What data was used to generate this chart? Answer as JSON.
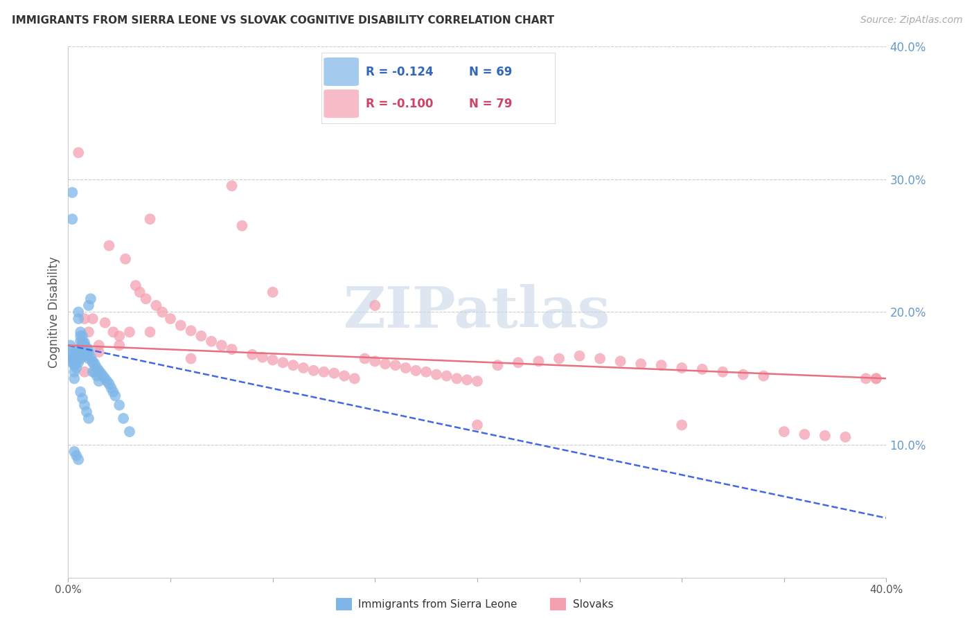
{
  "title": "IMMIGRANTS FROM SIERRA LEONE VS SLOVAK COGNITIVE DISABILITY CORRELATION CHART",
  "source": "Source: ZipAtlas.com",
  "ylabel": "Cognitive Disability",
  "xlim": [
    0.0,
    0.4
  ],
  "ylim": [
    0.0,
    0.4
  ],
  "ytick_positions_right": [
    0.1,
    0.2,
    0.3,
    0.4
  ],
  "ytick_labels_right": [
    "10.0%",
    "20.0%",
    "30.0%",
    "40.0%"
  ],
  "grid_color": "#cccccc",
  "background_color": "#ffffff",
  "watermark_text": "ZIPatlas",
  "watermark_color": "#c8d8e8",
  "series1_name": "Immigrants from Sierra Leone",
  "series1_color": "#7EB6E8",
  "series1_R": "-0.124",
  "series1_N": "69",
  "series1_trend_color": "#4169E1",
  "series1_trend_style": "--",
  "series2_name": "Slovaks",
  "series2_color": "#F4A0B0",
  "series2_R": "-0.100",
  "series2_N": "79",
  "series2_trend_color": "#E87080",
  "series2_trend_style": "-",
  "sierra_leone_x": [
    0.001,
    0.001,
    0.001,
    0.002,
    0.002,
    0.002,
    0.002,
    0.003,
    0.003,
    0.003,
    0.003,
    0.003,
    0.004,
    0.004,
    0.004,
    0.004,
    0.005,
    0.005,
    0.005,
    0.005,
    0.005,
    0.006,
    0.006,
    0.006,
    0.006,
    0.007,
    0.007,
    0.007,
    0.008,
    0.008,
    0.008,
    0.008,
    0.009,
    0.009,
    0.009,
    0.01,
    0.01,
    0.01,
    0.01,
    0.011,
    0.011,
    0.012,
    0.012,
    0.012,
    0.013,
    0.013,
    0.014,
    0.014,
    0.015,
    0.015,
    0.016,
    0.017,
    0.018,
    0.019,
    0.02,
    0.021,
    0.022,
    0.023,
    0.025,
    0.027,
    0.03,
    0.003,
    0.004,
    0.005,
    0.006,
    0.007,
    0.008,
    0.009,
    0.01
  ],
  "sierra_leone_y": [
    0.175,
    0.17,
    0.165,
    0.29,
    0.27,
    0.168,
    0.162,
    0.165,
    0.163,
    0.16,
    0.155,
    0.15,
    0.17,
    0.168,
    0.163,
    0.158,
    0.2,
    0.195,
    0.172,
    0.168,
    0.162,
    0.185,
    0.182,
    0.178,
    0.165,
    0.182,
    0.178,
    0.175,
    0.177,
    0.175,
    0.172,
    0.168,
    0.173,
    0.17,
    0.167,
    0.205,
    0.172,
    0.169,
    0.165,
    0.21,
    0.166,
    0.163,
    0.162,
    0.155,
    0.161,
    0.155,
    0.158,
    0.152,
    0.156,
    0.148,
    0.154,
    0.152,
    0.15,
    0.148,
    0.146,
    0.143,
    0.14,
    0.137,
    0.13,
    0.12,
    0.11,
    0.095,
    0.092,
    0.089,
    0.14,
    0.135,
    0.13,
    0.125,
    0.12
  ],
  "slovaks_x": [
    0.005,
    0.008,
    0.01,
    0.012,
    0.015,
    0.018,
    0.02,
    0.022,
    0.025,
    0.028,
    0.03,
    0.033,
    0.035,
    0.038,
    0.04,
    0.043,
    0.046,
    0.05,
    0.055,
    0.06,
    0.065,
    0.07,
    0.075,
    0.08,
    0.085,
    0.09,
    0.095,
    0.1,
    0.105,
    0.11,
    0.115,
    0.12,
    0.125,
    0.13,
    0.135,
    0.14,
    0.145,
    0.15,
    0.155,
    0.16,
    0.165,
    0.17,
    0.175,
    0.18,
    0.185,
    0.19,
    0.195,
    0.2,
    0.21,
    0.22,
    0.23,
    0.24,
    0.25,
    0.26,
    0.27,
    0.28,
    0.29,
    0.3,
    0.31,
    0.32,
    0.33,
    0.34,
    0.35,
    0.36,
    0.37,
    0.38,
    0.39,
    0.395,
    0.008,
    0.015,
    0.025,
    0.04,
    0.06,
    0.08,
    0.1,
    0.15,
    0.2,
    0.3,
    0.395
  ],
  "slovaks_y": [
    0.32,
    0.195,
    0.185,
    0.195,
    0.175,
    0.192,
    0.25,
    0.185,
    0.182,
    0.24,
    0.185,
    0.22,
    0.215,
    0.21,
    0.27,
    0.205,
    0.2,
    0.195,
    0.19,
    0.186,
    0.182,
    0.178,
    0.175,
    0.172,
    0.265,
    0.168,
    0.166,
    0.164,
    0.162,
    0.16,
    0.158,
    0.156,
    0.155,
    0.154,
    0.152,
    0.15,
    0.165,
    0.163,
    0.161,
    0.16,
    0.158,
    0.156,
    0.155,
    0.153,
    0.152,
    0.15,
    0.149,
    0.148,
    0.16,
    0.162,
    0.163,
    0.165,
    0.167,
    0.165,
    0.163,
    0.161,
    0.16,
    0.158,
    0.157,
    0.155,
    0.153,
    0.152,
    0.11,
    0.108,
    0.107,
    0.106,
    0.15,
    0.15,
    0.155,
    0.17,
    0.175,
    0.185,
    0.165,
    0.295,
    0.215,
    0.205,
    0.115,
    0.115,
    0.15
  ],
  "sl_trend_x0": 0.0,
  "sl_trend_x1": 0.4,
  "sl_trend_y0": 0.175,
  "sl_trend_y1": 0.045,
  "sk_trend_x0": 0.0,
  "sk_trend_x1": 0.4,
  "sk_trend_y0": 0.175,
  "sk_trend_y1": 0.15
}
